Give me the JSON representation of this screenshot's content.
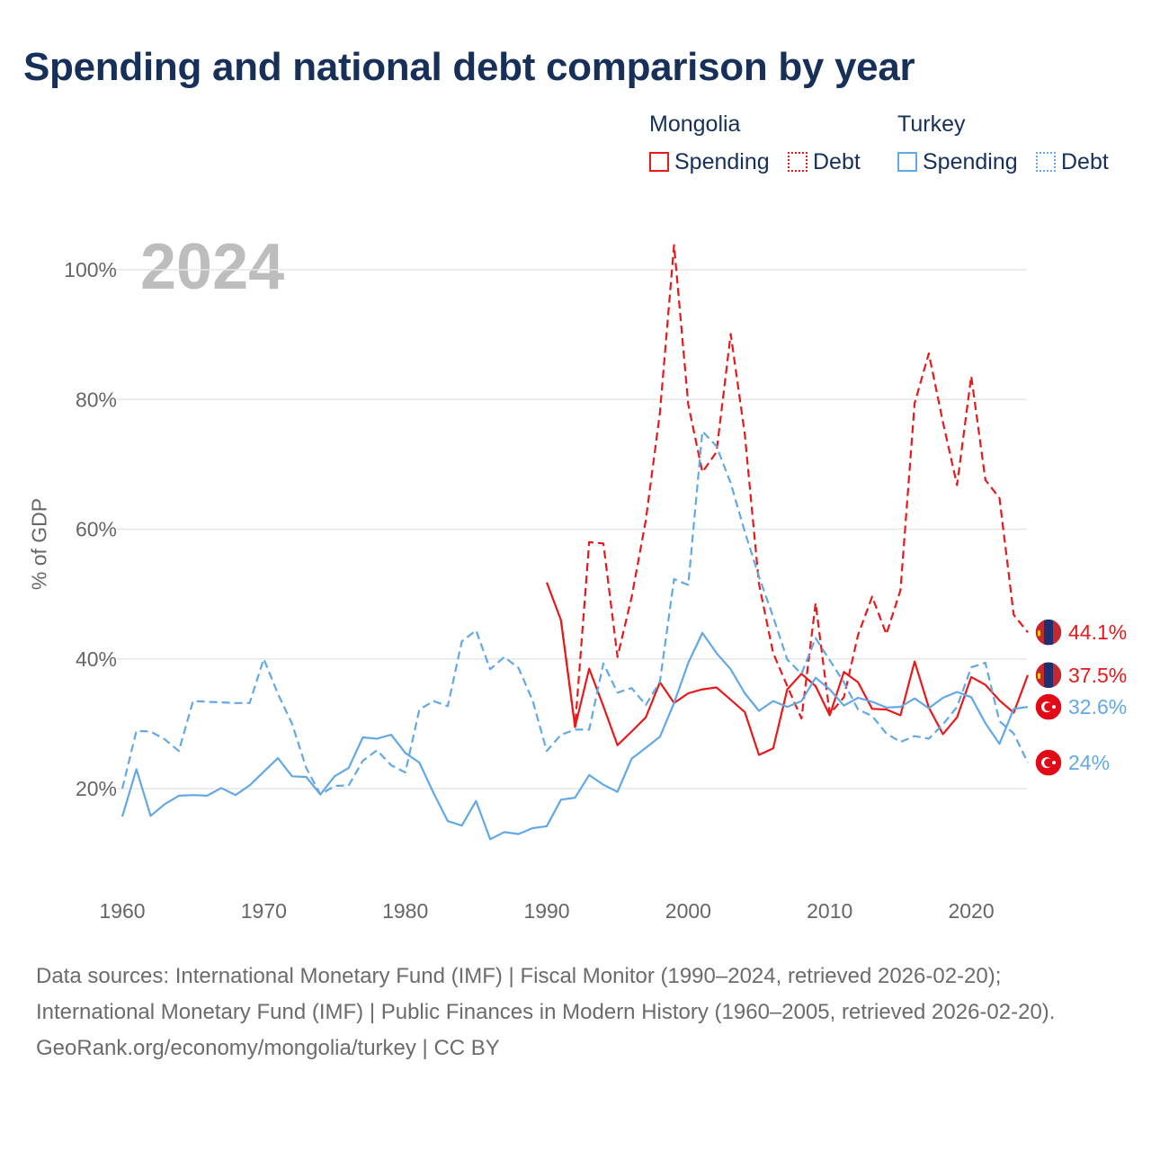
{
  "title": "Spending and national debt comparison by year",
  "legend": {
    "groups": [
      {
        "name": "Mongolia",
        "spending_label": "Spending",
        "debt_label": "Debt"
      },
      {
        "name": "Turkey",
        "spending_label": "Spending",
        "debt_label": "Debt"
      }
    ]
  },
  "year_watermark": "2024",
  "footer": {
    "sources": "Data sources: International Monetary Fund (IMF) | Fiscal Monitor (1990–2024, retrieved 2026-02-20); International Monetary Fund (IMF) | Public Finances in Modern History (1960–2005, retrieved 2026-02-20).",
    "credit": "GeoRank.org/economy/mongolia/turkey | CC BY"
  },
  "colors": {
    "mongolia": "#e8181b",
    "turkey": "#62a8e5",
    "grid": "#e6e6e6",
    "axis_text": "#666666"
  },
  "chart_data": {
    "type": "line",
    "title": "Spending and national debt comparison by year",
    "xlabel": "",
    "ylabel": "% of GDP",
    "xlim": [
      1960,
      2024
    ],
    "ylim": [
      7,
      105
    ],
    "xticks": [
      1960,
      1970,
      1980,
      1990,
      2000,
      2010,
      2020
    ],
    "yticks": [
      20,
      40,
      60,
      80,
      100
    ],
    "ytick_labels": [
      "20%",
      "40%",
      "60%",
      "80%",
      "100%"
    ],
    "series": [
      {
        "name": "Mongolia Spending",
        "country": "Mongolia",
        "measure": "Spending",
        "style": "solid",
        "color": "#e8181b",
        "end_label": "37.5%",
        "x": [
          1990,
          1991,
          1992,
          1993,
          1994,
          1995,
          1996,
          1997,
          1998,
          1999,
          2000,
          2001,
          2002,
          2003,
          2004,
          2005,
          2006,
          2007,
          2008,
          2009,
          2010,
          2011,
          2012,
          2013,
          2014,
          2015,
          2016,
          2017,
          2018,
          2019,
          2020,
          2021,
          2022,
          2023,
          2024
        ],
        "y": [
          51.8,
          46,
          29.5,
          38.5,
          32.7,
          26.7,
          28.8,
          31,
          36.4,
          33.2,
          34.7,
          35.3,
          35.6,
          33.7,
          31.8,
          25.2,
          26.2,
          35.3,
          37.7,
          35.8,
          31.3,
          38,
          36.4,
          32.3,
          32.2,
          31.3,
          39.6,
          32.5,
          28.4,
          31,
          37.2,
          36,
          33.6,
          31.7,
          37.5
        ]
      },
      {
        "name": "Mongolia Debt",
        "country": "Mongolia",
        "measure": "Debt",
        "style": "dashed",
        "color": "#e8181b",
        "end_label": "44.1%",
        "x": [
          1991,
          1992,
          1993,
          1994,
          1995,
          1996,
          1997,
          1998,
          1999,
          2000,
          2001,
          2002,
          2003,
          2004,
          2005,
          2006,
          2007,
          2008,
          2009,
          2010,
          2011,
          2012,
          2013,
          2014,
          2015,
          2016,
          2017,
          2018,
          2019,
          2020,
          2021,
          2022,
          2023,
          2024
        ],
        "y": [
          46,
          29.5,
          58,
          57.8,
          40.3,
          49.5,
          61.4,
          78,
          103.8,
          79.2,
          68.8,
          71.9,
          90.1,
          74.6,
          51.6,
          40.9,
          35.8,
          30.8,
          48.6,
          31.5,
          34.1,
          43.7,
          49.6,
          43.8,
          50.6,
          79.4,
          87.1,
          76.5,
          66.8,
          83.6,
          67.6,
          64.8,
          46.8,
          44.1
        ]
      },
      {
        "name": "Turkey Spending",
        "country": "Turkey",
        "measure": "Spending",
        "style": "solid",
        "color": "#62a8e5",
        "end_label": "32.6%",
        "x": [
          1960,
          1961,
          1962,
          1963,
          1964,
          1965,
          1966,
          1967,
          1968,
          1969,
          1970,
          1971,
          1972,
          1973,
          1974,
          1975,
          1976,
          1977,
          1978,
          1979,
          1980,
          1981,
          1982,
          1983,
          1984,
          1985,
          1986,
          1987,
          1988,
          1989,
          1990,
          1991,
          1992,
          1993,
          1994,
          1995,
          1996,
          1997,
          1998,
          1999,
          2000,
          2001,
          2002,
          2003,
          2004,
          2005,
          2006,
          2007,
          2008,
          2009,
          2010,
          2011,
          2012,
          2013,
          2014,
          2015,
          2016,
          2017,
          2018,
          2019,
          2020,
          2021,
          2022,
          2023,
          2024
        ],
        "y": [
          15.7,
          23,
          15.8,
          17.6,
          18.9,
          19,
          18.9,
          20.1,
          19,
          20.5,
          22.6,
          24.7,
          21.9,
          21.8,
          19.1,
          21.9,
          23.2,
          27.9,
          27.7,
          28.3,
          25.5,
          24,
          19.3,
          15,
          14.3,
          18.1,
          12.2,
          13.3,
          13,
          13.9,
          14.2,
          18.3,
          18.6,
          22.1,
          20.6,
          19.5,
          24.6,
          26.3,
          28,
          33.2,
          39.4,
          44,
          40.9,
          38.4,
          34.7,
          32,
          33.5,
          32.6,
          33.5,
          37.1,
          35.3,
          32.8,
          34,
          33.4,
          32.5,
          32.6,
          33.9,
          32.4,
          34,
          34.9,
          34.1,
          30.1,
          26.9,
          32.3,
          32.6
        ]
      },
      {
        "name": "Turkey Debt",
        "country": "Turkey",
        "measure": "Debt",
        "style": "dashed",
        "color": "#62a8e5",
        "end_label": "24%",
        "x": [
          1960,
          1961,
          1962,
          1963,
          1964,
          1965,
          1966,
          1967,
          1968,
          1969,
          1970,
          1971,
          1972,
          1973,
          1974,
          1975,
          1976,
          1977,
          1978,
          1979,
          1980,
          1981,
          1982,
          1983,
          1984,
          1985,
          1986,
          1987,
          1988,
          1989,
          1990,
          1991,
          1992,
          1993,
          1994,
          1995,
          1996,
          1997,
          1998,
          1999,
          2000,
          2001,
          2002,
          2003,
          2004,
          2005,
          2006,
          2007,
          2008,
          2009,
          2010,
          2011,
          2012,
          2013,
          2014,
          2015,
          2016,
          2017,
          2018,
          2019,
          2020,
          2021,
          2022,
          2023,
          2024
        ],
        "y": [
          20,
          28.9,
          28.8,
          27.6,
          25.8,
          33.5,
          33.4,
          33.3,
          33.2,
          33.2,
          40,
          34.6,
          30,
          23.2,
          19.1,
          20.4,
          20.5,
          24.3,
          25.9,
          23.6,
          22.5,
          32.2,
          33.5,
          32.7,
          42.7,
          44.4,
          38.4,
          40.3,
          38.6,
          33.6,
          25.8,
          28.3,
          29.1,
          29.1,
          39.3,
          34.8,
          35.5,
          32.9,
          36.5,
          52.3,
          51.4,
          75.1,
          72.8,
          67.1,
          59.6,
          52.7,
          46.5,
          39.9,
          37.7,
          43.2,
          39.8,
          36.4,
          32.2,
          31.2,
          28.5,
          27.2,
          28.1,
          27.7,
          29.9,
          32.6,
          38.7,
          39.4,
          30.4,
          28.5,
          24
        ]
      }
    ]
  }
}
